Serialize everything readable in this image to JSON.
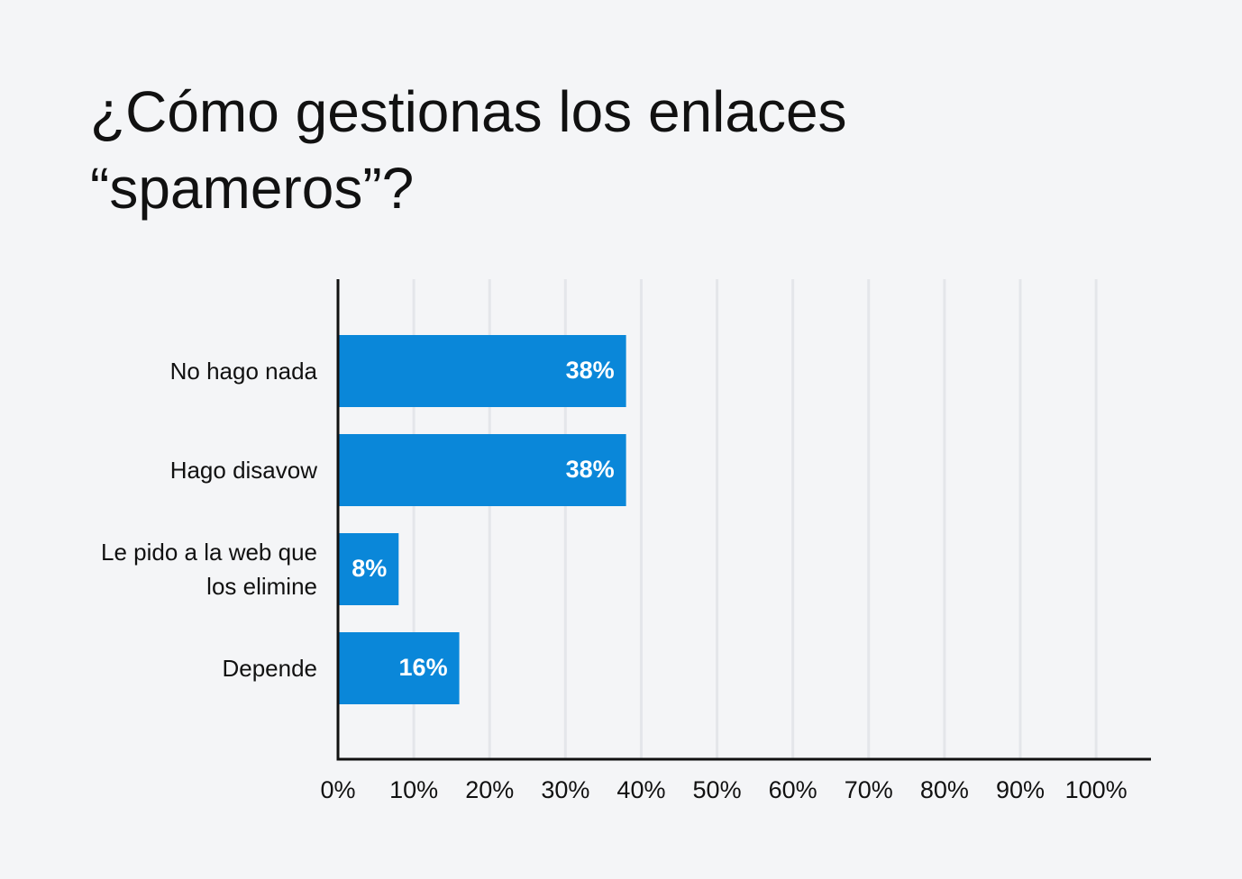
{
  "chart_data": {
    "type": "hbar",
    "title": "¿Cómo gestionas los enlaces “spameros”?",
    "categories": [
      "No hago nada",
      "Hago disavow",
      "Le pido a la web que los elimine",
      "Depende"
    ],
    "values": [
      38,
      38,
      8,
      16
    ],
    "value_labels": [
      "38%",
      "38%",
      "8%",
      "16%"
    ],
    "color": "#0a87d9",
    "xlim": [
      0,
      107
    ],
    "xticks": [
      {
        "value": 0,
        "label": "0%"
      },
      {
        "value": 10,
        "label": "10%"
      },
      {
        "value": 20,
        "label": "20%"
      },
      {
        "value": 30,
        "label": "30%"
      },
      {
        "value": 40,
        "label": "40%"
      },
      {
        "value": 50,
        "label": "50%"
      },
      {
        "value": 60,
        "label": "60%"
      },
      {
        "value": 70,
        "label": "70%"
      },
      {
        "value": 80,
        "label": "80%"
      },
      {
        "value": 90,
        "label": "90%"
      },
      {
        "value": 100,
        "label": "100%"
      }
    ],
    "grid": true
  }
}
